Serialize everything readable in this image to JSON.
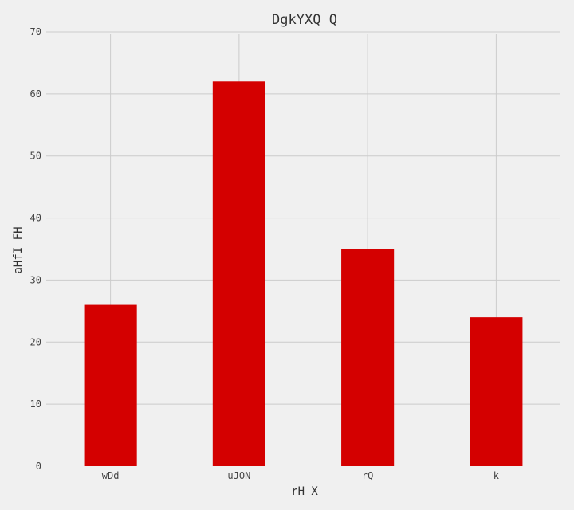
{
  "chart_data": {
    "type": "bar",
    "title": "DgkYXQ Q",
    "xlabel": "rH X",
    "ylabel": "aHfI FH",
    "categories": [
      "wDd",
      "uJON",
      "rQ",
      "k"
    ],
    "values": [
      26,
      62,
      35,
      24
    ],
    "ylim": [
      0,
      70
    ],
    "yticks": [
      0,
      10,
      20,
      30,
      40,
      50,
      60,
      70
    ],
    "grid": true,
    "bar_color": "#d40000",
    "background_color": "#f0f0f0",
    "grid_color": "#cbcbcb"
  }
}
